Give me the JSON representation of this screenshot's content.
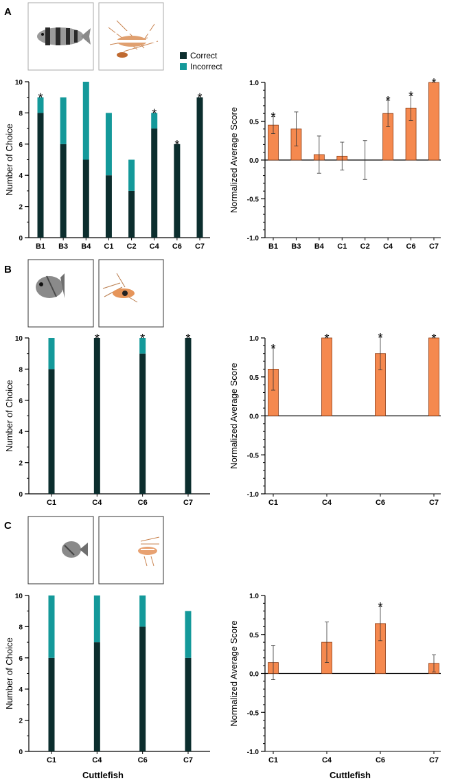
{
  "colors": {
    "correct": "#0c2e2e",
    "incorrect": "#14999a",
    "score_bar": "#f5894f",
    "score_outline": "#8a3a12",
    "axis": "#000000"
  },
  "legend": {
    "correct": "Correct",
    "incorrect": "Incorrect"
  },
  "xlabel": "Cuttlefish",
  "chart_data": [
    {
      "panel": "A",
      "type": "bar",
      "stacked": true,
      "categories": [
        "B1",
        "B3",
        "B4",
        "C1",
        "C2",
        "C4",
        "C6",
        "C7"
      ],
      "series": [
        {
          "name": "Correct",
          "values": [
            8,
            6,
            5,
            4,
            3,
            7,
            6,
            9
          ]
        },
        {
          "name": "Incorrect",
          "values": [
            1,
            3,
            5,
            4,
            2,
            1,
            0,
            0
          ]
        }
      ],
      "significant": [
        true,
        false,
        false,
        false,
        false,
        true,
        true,
        true
      ],
      "ylabel": "Number of Choice",
      "ylim": [
        0,
        10
      ],
      "yticks": [
        0,
        2,
        4,
        6,
        8,
        10
      ],
      "legend": "top-right"
    },
    {
      "panel": "A",
      "type": "bar",
      "categories": [
        "B1",
        "B3",
        "B4",
        "C1",
        "C2",
        "C4",
        "C6",
        "C7"
      ],
      "values": [
        0.45,
        0.4,
        0.07,
        0.05,
        0.0,
        0.6,
        0.67,
        1.0
      ],
      "errors": [
        0.11,
        0.22,
        0.24,
        0.18,
        0.25,
        0.17,
        0.16,
        0.0
      ],
      "significant": [
        true,
        false,
        false,
        false,
        false,
        true,
        true,
        true
      ],
      "ylabel": "Normalized Average Score",
      "ylim": [
        -1,
        1
      ],
      "yticks": [
        -1.0,
        -0.5,
        0.0,
        0.5,
        1.0
      ],
      "ytick_labels": [
        "-1.0",
        "-0.5",
        "0.0",
        "0.5",
        "1.0"
      ]
    },
    {
      "panel": "B",
      "type": "bar",
      "stacked": true,
      "categories": [
        "C1",
        "C4",
        "C6",
        "C7"
      ],
      "series": [
        {
          "name": "Correct",
          "values": [
            8,
            10,
            9,
            10
          ]
        },
        {
          "name": "Incorrect",
          "values": [
            2,
            0,
            1,
            0
          ]
        }
      ],
      "significant": [
        false,
        true,
        true,
        true
      ],
      "ylabel": "Number of Choice",
      "ylim": [
        0,
        10
      ],
      "yticks": [
        0,
        2,
        4,
        6,
        8,
        10
      ]
    },
    {
      "panel": "B",
      "type": "bar",
      "categories": [
        "C1",
        "C4",
        "C6",
        "C7"
      ],
      "values": [
        0.6,
        1.0,
        0.8,
        1.0
      ],
      "errors": [
        0.27,
        0.0,
        0.21,
        0.0
      ],
      "significant": [
        true,
        true,
        true,
        true
      ],
      "ylabel": "Normalized Average Score",
      "ylim": [
        -1,
        1
      ],
      "yticks": [
        -1.0,
        -0.5,
        0.0,
        0.5,
        1.0
      ],
      "ytick_labels": [
        "-1.0",
        "-0.5",
        "0.0",
        "0.5",
        "1.0"
      ]
    },
    {
      "panel": "C",
      "type": "bar",
      "stacked": true,
      "categories": [
        "C1",
        "C4",
        "C6",
        "C7"
      ],
      "series": [
        {
          "name": "Correct",
          "values": [
            6,
            7,
            8,
            6
          ]
        },
        {
          "name": "Incorrect",
          "values": [
            4,
            3,
            2,
            3
          ]
        }
      ],
      "significant": [
        false,
        false,
        false,
        false
      ],
      "ylabel": "Number of Choice",
      "ylim": [
        0,
        10
      ],
      "yticks": [
        0,
        2,
        4,
        6,
        8,
        10
      ],
      "xlabel": "Cuttlefish"
    },
    {
      "panel": "C",
      "type": "bar",
      "categories": [
        "C1",
        "C4",
        "C6",
        "C7"
      ],
      "values": [
        0.14,
        0.4,
        0.64,
        0.13
      ],
      "errors": [
        0.22,
        0.26,
        0.22,
        0.11
      ],
      "significant": [
        false,
        false,
        true,
        false
      ],
      "ylabel": "Normalized Average Score",
      "ylim": [
        -1,
        1
      ],
      "yticks": [
        -1.0,
        -0.5,
        0.0,
        0.5,
        1.0
      ],
      "ytick_labels": [
        "-1.0",
        "-0.5",
        "0.0",
        "0.5",
        "1.0"
      ],
      "xlabel": "Cuttlefish"
    }
  ]
}
